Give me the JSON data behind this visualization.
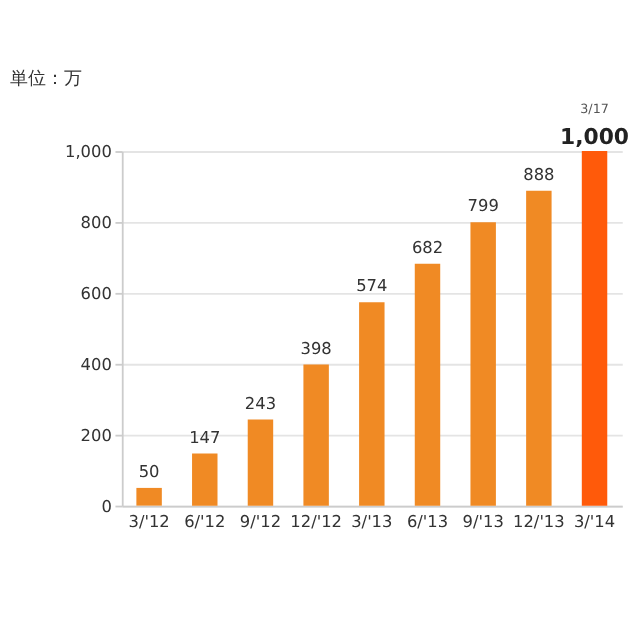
{
  "chart_data": {
    "type": "bar",
    "ylabel": "単位：万",
    "categories": [
      "3/'12",
      "6/'12",
      "9/'12",
      "12/'12",
      "3/'13",
      "6/'13",
      "9/'13",
      "12/'13",
      "3/'14"
    ],
    "values": [
      50,
      147,
      243,
      398,
      574,
      682,
      799,
      888,
      1000
    ],
    "colors": [
      "#f08a24",
      "#f08a24",
      "#f08a24",
      "#f08a24",
      "#f08a24",
      "#f08a24",
      "#f08a24",
      "#f08a24",
      "#ff5a0a"
    ],
    "value_labels": [
      "50",
      "147",
      "243",
      "398",
      "574",
      "682",
      "799",
      "888",
      "1,000"
    ],
    "annotations": [
      {
        "text": "3/17",
        "x": "3/'14",
        "y": 1000
      }
    ],
    "ylim": [
      0,
      1000
    ],
    "yticks": [
      0,
      200,
      400,
      600,
      800,
      {
        "value": 1000,
        "label": "1,000"
      }
    ],
    "grid": "y"
  }
}
